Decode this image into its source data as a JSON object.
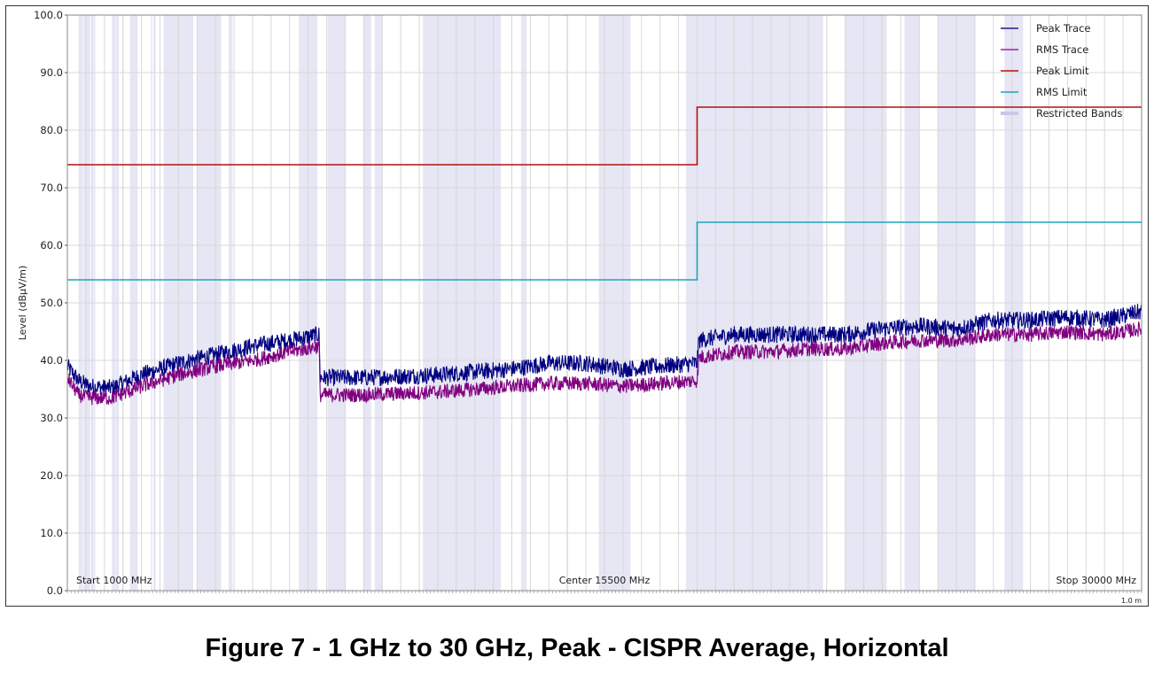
{
  "chart_data": {
    "type": "line",
    "ylabel": "Level (dBµV/m)",
    "xlabel": "",
    "xlim": [
      1000,
      30000
    ],
    "ylim": [
      0,
      100
    ],
    "y_ticks": [
      "0.0",
      "10.0",
      "20.0",
      "30.0",
      "40.0",
      "50.0",
      "60.0",
      "70.0",
      "80.0",
      "90.0",
      "100.0"
    ],
    "x_start_label": "Start 1000 MHz",
    "x_center_label": "Center 15500 MHz",
    "x_stop_label": "Stop 30000 MHz",
    "corner_note": "1.0 m",
    "grid": true,
    "legend_position": "top-right",
    "legend": [
      {
        "name": "Peak Trace",
        "color": "#1a1a8c"
      },
      {
        "name": "RMS Trace",
        "color": "#a020a0"
      },
      {
        "name": "Peak Limit",
        "color": "#b01010"
      },
      {
        "name": "RMS Limit",
        "color": "#1aa5b5"
      },
      {
        "name": "Restricted Bands",
        "color": "#c8c8e6"
      }
    ],
    "series": [
      {
        "name": "Peak Trace",
        "color": "#000080",
        "x": [
          1000,
          1300,
          1600,
          2200,
          3000,
          4000,
          5000,
          6000,
          7000,
          7800,
          7820,
          9000,
          11000,
          13000,
          14000,
          15000,
          16000,
          17000,
          18000,
          18050,
          19000,
          20000,
          21000,
          22000,
          23000,
          24000,
          25000,
          26000,
          27000,
          28000,
          29000,
          30000
        ],
        "y": [
          39,
          36.5,
          35.5,
          35.2,
          37.5,
          39.5,
          41,
          42.5,
          43.5,
          44.5,
          37,
          37,
          37.5,
          38.5,
          39.5,
          39.5,
          38.5,
          39,
          39.5,
          43.5,
          44.5,
          44.5,
          44.5,
          44.5,
          45.5,
          46,
          45.5,
          47,
          47,
          47.5,
          47,
          48.5
        ]
      },
      {
        "name": "RMS Trace",
        "color": "#800080",
        "x": [
          1000,
          1300,
          1600,
          2200,
          3000,
          4000,
          5000,
          6000,
          7000,
          7800,
          7820,
          9000,
          11000,
          13000,
          14000,
          15000,
          16000,
          17000,
          18000,
          18050,
          19000,
          20000,
          21000,
          22000,
          23000,
          24000,
          25000,
          26000,
          27000,
          28000,
          29000,
          30000
        ],
        "y": [
          37,
          34,
          33.5,
          33.5,
          35.5,
          37.5,
          39,
          40,
          41.5,
          42.5,
          34,
          34,
          34.5,
          35.5,
          36,
          36,
          35.5,
          36,
          36.5,
          40.5,
          41.5,
          41.5,
          42,
          42,
          43,
          43.5,
          43.5,
          44.5,
          44.5,
          45,
          44.5,
          45.5
        ]
      },
      {
        "name": "Peak Limit",
        "color": "#b01010",
        "x": [
          1000,
          18000,
          18000,
          30000
        ],
        "y": [
          74,
          74,
          84,
          84
        ]
      },
      {
        "name": "RMS Limit",
        "color": "#1aa5b5",
        "x": [
          1000,
          18000,
          18000,
          30000
        ],
        "y": [
          54,
          54,
          64,
          64
        ]
      }
    ],
    "restricted_bands_mhz": [
      [
        1300,
        1420
      ],
      [
        1435,
        1626
      ],
      [
        1645,
        1646
      ],
      [
        1660,
        1710
      ],
      [
        1718,
        1722
      ],
      [
        2200,
        2300
      ],
      [
        2310,
        2390
      ],
      [
        2483,
        2500
      ],
      [
        2690,
        2900
      ],
      [
        3260,
        3267
      ],
      [
        3332,
        3339
      ],
      [
        3345,
        3358
      ],
      [
        3600,
        4400
      ],
      [
        4500,
        5150
      ],
      [
        5350,
        5460
      ],
      [
        7250,
        7750
      ],
      [
        8025,
        8500
      ],
      [
        9000,
        9200
      ],
      [
        9300,
        9500
      ],
      [
        10600,
        12700
      ],
      [
        13250,
        13400
      ],
      [
        14470,
        14500
      ],
      [
        15350,
        16200
      ],
      [
        17700,
        21400
      ],
      [
        22010,
        23120
      ],
      [
        23600,
        24000
      ],
      [
        24500,
        25500
      ],
      [
        26300,
        26800
      ]
    ]
  },
  "caption": "Figure 7 - 1 GHz to 30 GHz, Peak - CISPR Average, Horizontal"
}
